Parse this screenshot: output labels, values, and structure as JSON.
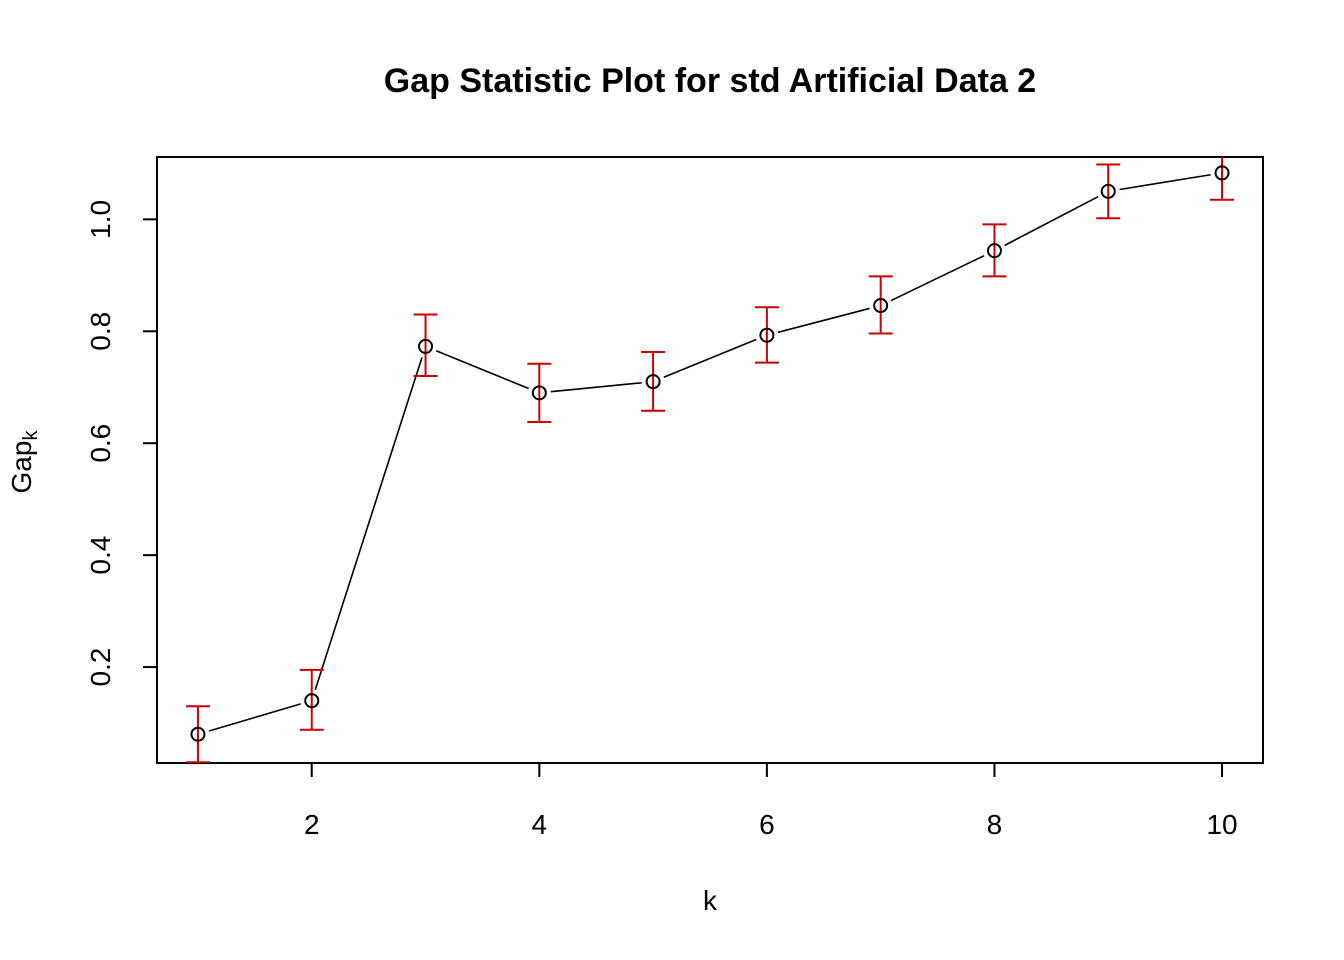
{
  "chart_data": {
    "type": "line",
    "title": "Gap Statistic Plot for std Artificial Data 2",
    "xlabel": "k",
    "ylabel": "Gap",
    "ylabel_subscript": "k",
    "x": [
      1,
      2,
      3,
      4,
      5,
      6,
      7,
      8,
      9,
      10
    ],
    "series": [
      {
        "values": [
          0.08,
          0.14,
          0.773,
          0.69,
          0.71,
          0.793,
          0.846,
          0.944,
          1.05,
          1.083
        ],
        "error_lower": [
          0.03,
          0.088,
          0.72,
          0.638,
          0.658,
          0.744,
          0.796,
          0.898,
          1.002,
          1.035
        ],
        "error_upper": [
          0.13,
          0.195,
          0.83,
          0.742,
          0.763,
          0.843,
          0.898,
          0.991,
          1.098,
          1.13
        ]
      }
    ],
    "xticks": [
      2,
      4,
      6,
      8,
      10
    ],
    "yticks": [
      0.2,
      0.4,
      0.6,
      0.8,
      1.0
    ],
    "xtick_labels": [
      "2",
      "4",
      "6",
      "8",
      "10"
    ],
    "ytick_labels": [
      "0.2",
      "0.4",
      "0.6",
      "0.8",
      "1.0"
    ],
    "xlim": [
      0.64,
      10.36
    ],
    "ylim": [
      0.0286,
      1.1114
    ],
    "grid": false,
    "colors": {
      "line": "#000000",
      "points": "#000000",
      "error_bars": "#CC0000"
    }
  }
}
